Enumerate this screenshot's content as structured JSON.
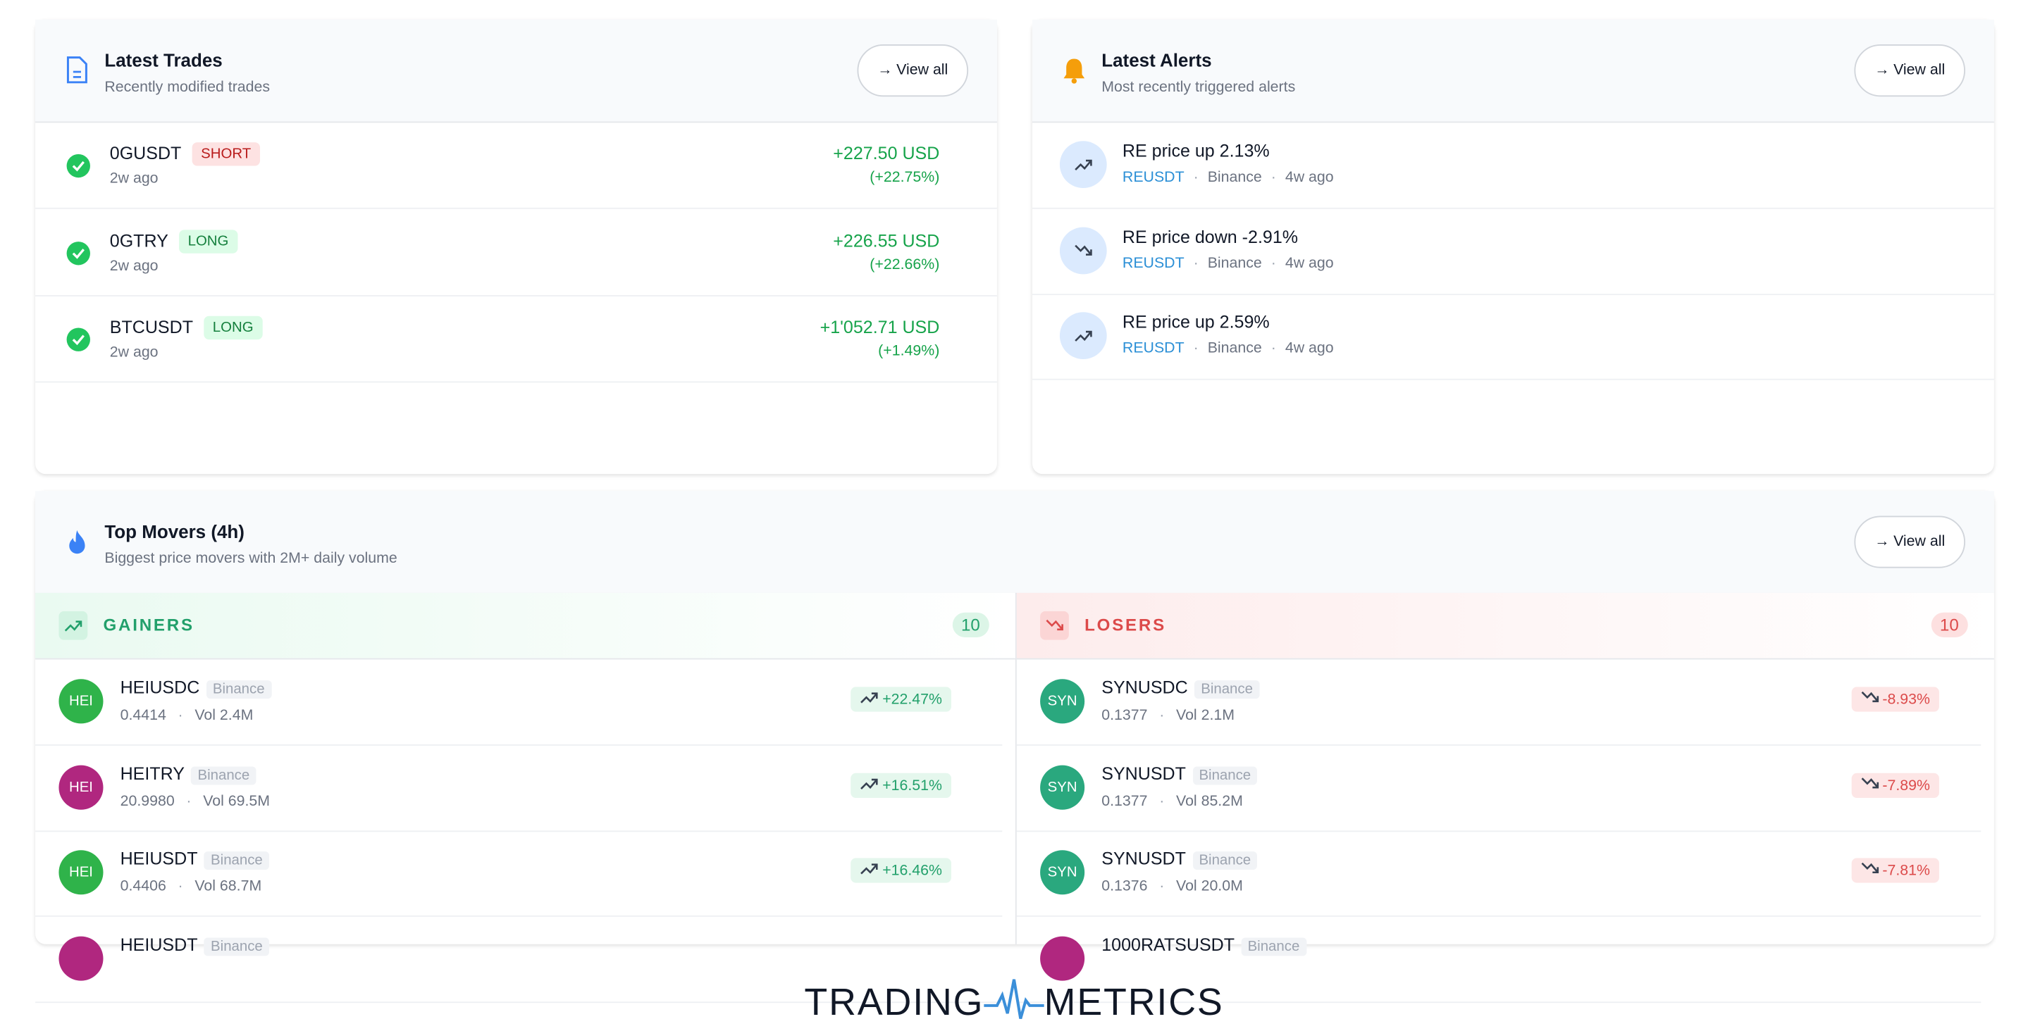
{
  "trades": {
    "title": "Latest Trades",
    "subtitle": "Recently modified trades",
    "view_all": "View all",
    "items": [
      {
        "symbol": "0GUSDT",
        "side": "SHORT",
        "time": "2w ago",
        "pnl": "+227.50 USD",
        "pct": "(+22.75%)"
      },
      {
        "symbol": "0GTRY",
        "side": "LONG",
        "time": "2w ago",
        "pnl": "+226.55 USD",
        "pct": "(+22.66%)"
      },
      {
        "symbol": "BTCUSDT",
        "side": "LONG",
        "time": "2w ago",
        "pnl": "+1'052.71 USD",
        "pct": "(+1.49%)"
      }
    ]
  },
  "alerts": {
    "title": "Latest Alerts",
    "subtitle": "Most recently triggered alerts",
    "view_all": "View all",
    "items": [
      {
        "title": "RE price up 2.13%",
        "symbol": "REUSDT",
        "exchange": "Binance",
        "time": "4w ago"
      },
      {
        "title": "RE price down -2.91%",
        "symbol": "REUSDT",
        "exchange": "Binance",
        "time": "4w ago"
      },
      {
        "title": "RE price up 2.59%",
        "symbol": "REUSDT",
        "exchange": "Binance",
        "time": "4w ago"
      }
    ]
  },
  "movers": {
    "title": "Top Movers (4h)",
    "subtitle": "Biggest price movers with 2M+ daily volume",
    "view_all": "View all",
    "gainers": {
      "label": "GAINERS",
      "count": 10,
      "items": [
        {
          "avatar": "HEI",
          "symbol": "HEIUSDC",
          "exchange": "Binance",
          "price": "0.4414",
          "vol": "Vol 2.4M",
          "change": "+22.47%"
        },
        {
          "avatar": "HEI",
          "symbol": "HEITRY",
          "exchange": "Binance",
          "price": "20.9980",
          "vol": "Vol 69.5M",
          "change": "+16.51%"
        },
        {
          "avatar": "HEI",
          "symbol": "HEIUSDT",
          "exchange": "Binance",
          "price": "0.4406",
          "vol": "Vol 68.7M",
          "change": "+16.46%"
        },
        {
          "symbol": "HEIUSDT",
          "exchange": "Binance"
        }
      ]
    },
    "losers": {
      "label": "LOSERS",
      "count": 10,
      "items": [
        {
          "avatar": "SYN",
          "symbol": "SYNUSDC",
          "exchange": "Binance",
          "price": "0.1377",
          "vol": "Vol 2.1M",
          "change": "-8.93%"
        },
        {
          "avatar": "SYN",
          "symbol": "SYNUSDT",
          "exchange": "Binance",
          "price": "0.1377",
          "vol": "Vol 85.2M",
          "change": "-7.89%"
        },
        {
          "avatar": "SYN",
          "symbol": "SYNUSDT",
          "exchange": "Binance",
          "price": "0.1376",
          "vol": "Vol 20.0M",
          "change": "-7.81%"
        },
        {
          "symbol": "1000RATSUSDT",
          "exchange": "Binance"
        }
      ]
    }
  },
  "logo": {
    "left": "TRADING",
    "right": "METRICS"
  }
}
